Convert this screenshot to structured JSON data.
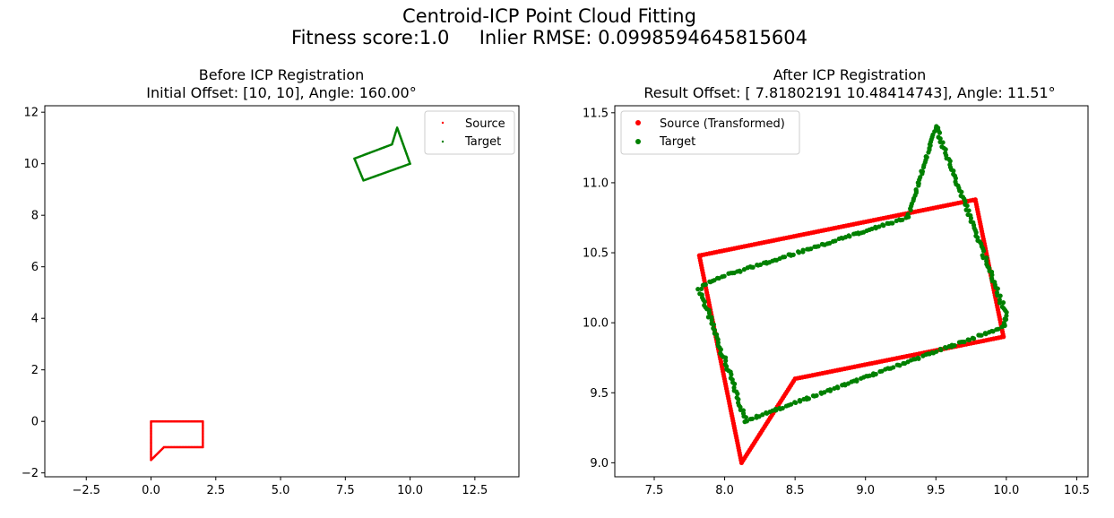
{
  "suptitle": {
    "line1": "Centroid-ICP Point Cloud Fitting",
    "line2": "Fitness score:1.0     Inlier RMSE: 0.0998594645815604"
  },
  "colors": {
    "source": "#ff0000",
    "target": "#008000",
    "axes": "#000000"
  },
  "chart_data": [
    {
      "type": "scatter",
      "title": "Before ICP Registration",
      "subtitle": "Initial Offset: [10, 10], Angle: 160.00°",
      "xlim": [
        -4.1,
        14.2
      ],
      "ylim": [
        -2.15,
        12.25
      ],
      "xticks": [
        -2.5,
        0.0,
        2.5,
        5.0,
        7.5,
        10.0,
        12.5
      ],
      "xtick_labels": [
        "−2.5",
        "0.0",
        "2.5",
        "5.0",
        "7.5",
        "10.0",
        "12.5"
      ],
      "yticks": [
        -2,
        0,
        2,
        4,
        6,
        8,
        10,
        12
      ],
      "ytick_labels": [
        "−2",
        "0",
        "2",
        "4",
        "6",
        "8",
        "10",
        "12"
      ],
      "legend": "top-right",
      "series": [
        {
          "name": "Source",
          "color": "#ff0000",
          "vertices": [
            [
              0,
              0
            ],
            [
              2,
              0
            ],
            [
              2,
              -1
            ],
            [
              0.5,
              -1
            ],
            [
              0,
              -1.5
            ],
            [
              0,
              0
            ]
          ]
        },
        {
          "name": "Target",
          "color": "#008000",
          "vertices": [
            [
              7.85,
              10.2
            ],
            [
              8.2,
              9.35
            ],
            [
              10.0,
              10.0
            ],
            [
              9.5,
              11.4
            ],
            [
              9.3,
              10.75
            ],
            [
              7.85,
              10.2
            ]
          ]
        }
      ]
    },
    {
      "type": "scatter",
      "title": "After ICP Registration",
      "subtitle": "Result Offset: [ 7.81802191 10.48414743], Angle: 11.51°",
      "xlim": [
        7.22,
        10.58
      ],
      "ylim": [
        8.9,
        11.55
      ],
      "xticks": [
        7.5,
        8.0,
        8.5,
        9.0,
        9.5,
        10.0,
        10.5
      ],
      "xtick_labels": [
        "7.5",
        "8.0",
        "8.5",
        "9.0",
        "9.5",
        "10.0",
        "10.5"
      ],
      "yticks": [
        9.0,
        9.5,
        10.0,
        10.5,
        11.0,
        11.5
      ],
      "ytick_labels": [
        "9.0",
        "9.5",
        "10.0",
        "10.5",
        "11.0",
        "11.5"
      ],
      "legend": "top-left",
      "series": [
        {
          "name": "Source (Transformed)",
          "color": "#ff0000",
          "vertices": [
            [
              7.82,
              10.48
            ],
            [
              9.78,
              10.88
            ],
            [
              9.98,
              9.9
            ],
            [
              8.5,
              9.6
            ],
            [
              8.12,
              9.0
            ],
            [
              7.82,
              10.48
            ]
          ]
        },
        {
          "name": "Target",
          "color": "#008000",
          "vertices": [
            [
              7.82,
              10.25
            ],
            [
              8.15,
              9.3
            ],
            [
              9.98,
              9.97
            ],
            [
              10.0,
              10.05
            ],
            [
              9.5,
              11.4
            ],
            [
              9.3,
              10.75
            ],
            [
              7.95,
              10.32
            ],
            [
              7.82,
              10.25
            ]
          ]
        }
      ]
    }
  ]
}
